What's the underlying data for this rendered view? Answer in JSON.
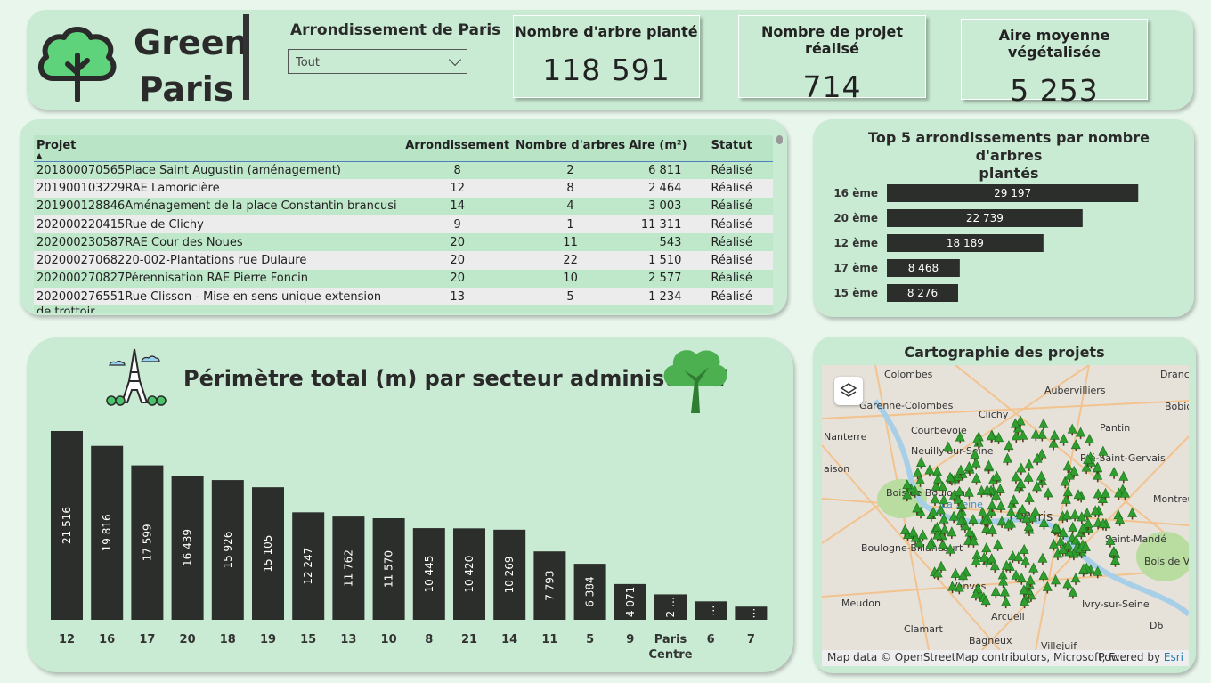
{
  "brand": {
    "line1": "Green",
    "line2": "Paris"
  },
  "slicer": {
    "title": "Arrondissement de Paris",
    "value": "Tout"
  },
  "kpis": [
    {
      "label": "Nombre d'arbre planté",
      "value": "118 591"
    },
    {
      "label": "Nombre de projet réalisé",
      "value": "714"
    },
    {
      "label": "Aire moyenne végétalisée",
      "value": "5 253"
    }
  ],
  "table": {
    "headers": [
      "Projet",
      "Arrondissement",
      "Nombre d'arbres",
      "Aire (m²)",
      "Statut"
    ],
    "rows": [
      [
        "201800070565Place Saint Augustin (aménagement)",
        "8",
        "2",
        "6 811",
        "Réalisé"
      ],
      [
        "201900103229RAE Lamoricière",
        "12",
        "8",
        "2 464",
        "Réalisé"
      ],
      [
        "201900128846Aménagement de la place Constantin brancusi",
        "14",
        "4",
        "3 003",
        "Réalisé"
      ],
      [
        "202000220415Rue de Clichy",
        "9",
        "1",
        "11 311",
        "Réalisé"
      ],
      [
        "202000230587RAE Cour des Noues",
        "20",
        "11",
        "543",
        "Réalisé"
      ],
      [
        "20200027068220-002-Plantations rue Dulaure",
        "20",
        "22",
        "1 510",
        "Réalisé"
      ],
      [
        "202000270827Pérennisation RAE Pierre Foncin",
        "20",
        "10",
        "2 577",
        "Réalisé"
      ],
      [
        "202000276551Rue Clisson - Mise en sens unique extension",
        "13",
        "5",
        "1 234",
        "Réalisé"
      ]
    ],
    "overflow_text": "de trottoir"
  },
  "top5": {
    "title_line1": "Top 5 arrondissements par nombre d'arbres",
    "title_line2": "plantés",
    "chart_data": {
      "type": "bar",
      "orientation": "horizontal",
      "title": "Top 5 arrondissements par nombre d'arbres plantés",
      "categories": [
        "16 ème",
        "20 ème",
        "12 ème",
        "17 ème",
        "15 ème"
      ],
      "values": [
        29197,
        22739,
        18189,
        8468,
        8276
      ],
      "labels": [
        "29 197",
        "22 739",
        "18 189",
        "8 468",
        "8 276"
      ],
      "bar_color": "#2b2e2b",
      "xlim": [
        0,
        30000
      ]
    }
  },
  "perimetre": {
    "title": "Périmètre total (m) par secteur administratif",
    "chart_data": {
      "type": "bar",
      "title": "Périmètre total (m) par secteur administratif",
      "categories": [
        "12",
        "16",
        "17",
        "20",
        "18",
        "19",
        "15",
        "13",
        "10",
        "8",
        "21",
        "14",
        "11",
        "5",
        "9",
        "Paris Centre",
        "6",
        "7"
      ],
      "values": [
        21516,
        19816,
        17599,
        16439,
        15926,
        15105,
        12247,
        11762,
        11570,
        10445,
        10420,
        10269,
        7793,
        6384,
        4071,
        2900,
        2100,
        1500
      ],
      "labels": [
        "21 516",
        "19 816",
        "17 599",
        "16 439",
        "15 926",
        "15 105",
        "12 247",
        "11 762",
        "11 570",
        "10 445",
        "10 420",
        "10 269",
        "7 793",
        "6 384",
        "4 071",
        "2 …",
        "…",
        "…"
      ],
      "bar_color": "#2b2e2b",
      "ylim": [
        0,
        21516
      ]
    }
  },
  "map": {
    "title": "Cartographie des projets",
    "places": [
      "Colombes",
      "Aubervilliers",
      "Drancy",
      "Garenne-Colombes",
      "Clichy",
      "Bobigny",
      "Courbevoie",
      "Pantin",
      "Nanterre",
      "Neuilly-sur-Seine",
      "Pré-Saint-Gervais",
      "aison",
      "Bois de Boulogne",
      "La Seine",
      "Montreuil",
      "Paris",
      "Boulogne-Billancourt",
      "Saint-Mandé",
      "Bois de Vincennes",
      "Vanves",
      "Meudon",
      "Ivry-sur-Seine",
      "Arcueil",
      "Clamart",
      "Bagneux",
      "Villejuif",
      "D6"
    ],
    "attribution": "Map data © OpenStreetMap contributors, Microsoft, F...",
    "powered": "Powered by",
    "esri": "Esri"
  }
}
